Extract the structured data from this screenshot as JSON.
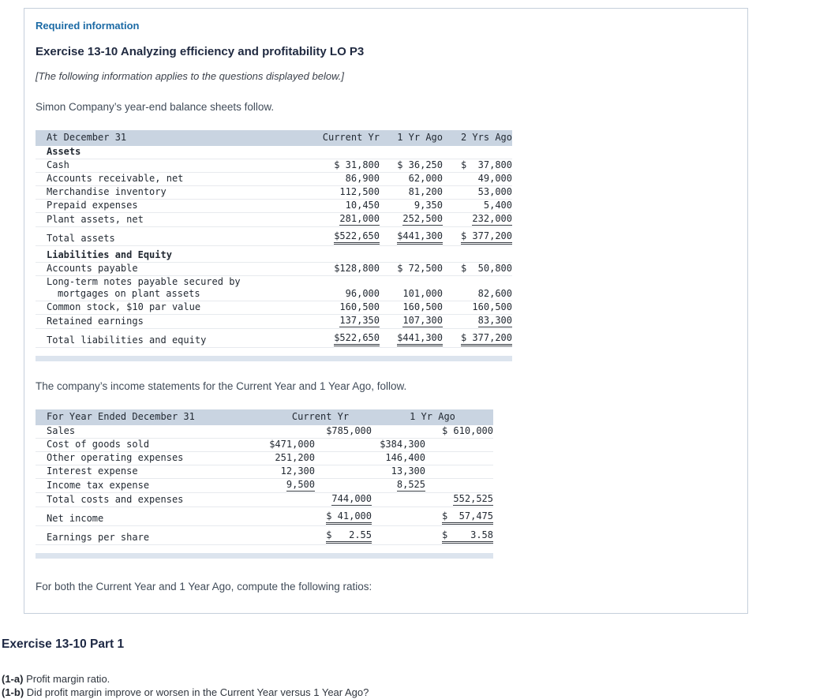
{
  "card": {
    "required_info": "Required information",
    "exercise_title": "Exercise 13-10 Analyzing efficiency and profitability LO P3",
    "apply_note": "[The following information applies to the questions displayed below.]",
    "intro_balance": "Simon Company’s year-end balance sheets follow.",
    "intro_income": "The company’s income statements for the Current Year and 1 Year Ago, follow.",
    "compute_note": "For both the Current Year and 1 Year Ago, compute the following ratios:"
  },
  "balance_sheet": {
    "headers": {
      "c0": "At December 31",
      "c1": "Current Yr",
      "c2": "1 Yr Ago",
      "c3": "2 Yrs Ago"
    },
    "rows": [
      {
        "label": "Assets"
      },
      {
        "label": "Cash",
        "v1": "$ 31,800",
        "v2": "$ 36,250",
        "v3": "$  37,800"
      },
      {
        "label": "Accounts receivable, net",
        "v1": "86,900",
        "v2": "62,000",
        "v3": "49,000"
      },
      {
        "label": "Merchandise inventory",
        "v1": "112,500",
        "v2": "81,200",
        "v3": "53,000"
      },
      {
        "label": "Prepaid expenses",
        "v1": "10,450",
        "v2": "9,350",
        "v3": "5,400"
      },
      {
        "label": "Plant assets, net",
        "v1": "281,000",
        "v2": "252,500",
        "v3": "232,000"
      },
      {
        "label": "Total assets",
        "v1": "$522,650",
        "v2": "$441,300",
        "v3": "$ 377,200"
      },
      {
        "label": "Liabilities and Equity"
      },
      {
        "label": "Accounts payable",
        "v1": "$128,800",
        "v2": "$ 72,500",
        "v3": "$  50,800"
      },
      {
        "label": "Long-term notes payable secured by",
        "label2": "mortgages on plant assets",
        "v1": "96,000",
        "v2": "101,000",
        "v3": "82,600"
      },
      {
        "label": "Common stock, $10 par value",
        "v1": "160,500",
        "v2": "160,500",
        "v3": "160,500"
      },
      {
        "label": "Retained earnings",
        "v1": "137,350",
        "v2": "107,300",
        "v3": "83,300"
      },
      {
        "label": "Total liabilities and equity",
        "v1": "$522,650",
        "v2": "$441,300",
        "v3": "$ 377,200"
      }
    ]
  },
  "income_statement": {
    "headers": {
      "c0": "For Year Ended December 31",
      "g1": "Current Yr",
      "g2": "1 Yr Ago"
    },
    "rows": [
      {
        "label": "Sales",
        "o1": "$785,000",
        "o2": "$ 610,000"
      },
      {
        "label": "Cost of goods sold",
        "i1": "$471,000",
        "i2": "$384,300"
      },
      {
        "label": "Other operating expenses",
        "i1": "251,200",
        "i2": "146,400"
      },
      {
        "label": "Interest expense",
        "i1": "12,300",
        "i2": "13,300"
      },
      {
        "label": "Income tax expense",
        "i1": "9,500",
        "i2": "8,525"
      },
      {
        "label": "Total costs and expenses",
        "o1": "744,000",
        "o2": "552,525"
      },
      {
        "label": "Net income",
        "o1": "$ 41,000",
        "o2": "$  57,475"
      },
      {
        "label": "Earnings per share",
        "o1": "$   2.55",
        "o2": "$    3.58"
      }
    ]
  },
  "part": {
    "title": "Exercise 13-10 Part 1",
    "q1a_label": "(1-a)",
    "q1a_text": "Profit margin ratio.",
    "q1b_label": "(1-b)",
    "q1b_text": "Did profit margin improve or worsen in the Current Year versus 1 Year Ago?"
  },
  "colors": {
    "accent_blue": "#1b6aa5",
    "table_header_bg": "#c9d4e1",
    "divider_bar": "#dce4ee",
    "card_border": "#c5cfdb"
  }
}
